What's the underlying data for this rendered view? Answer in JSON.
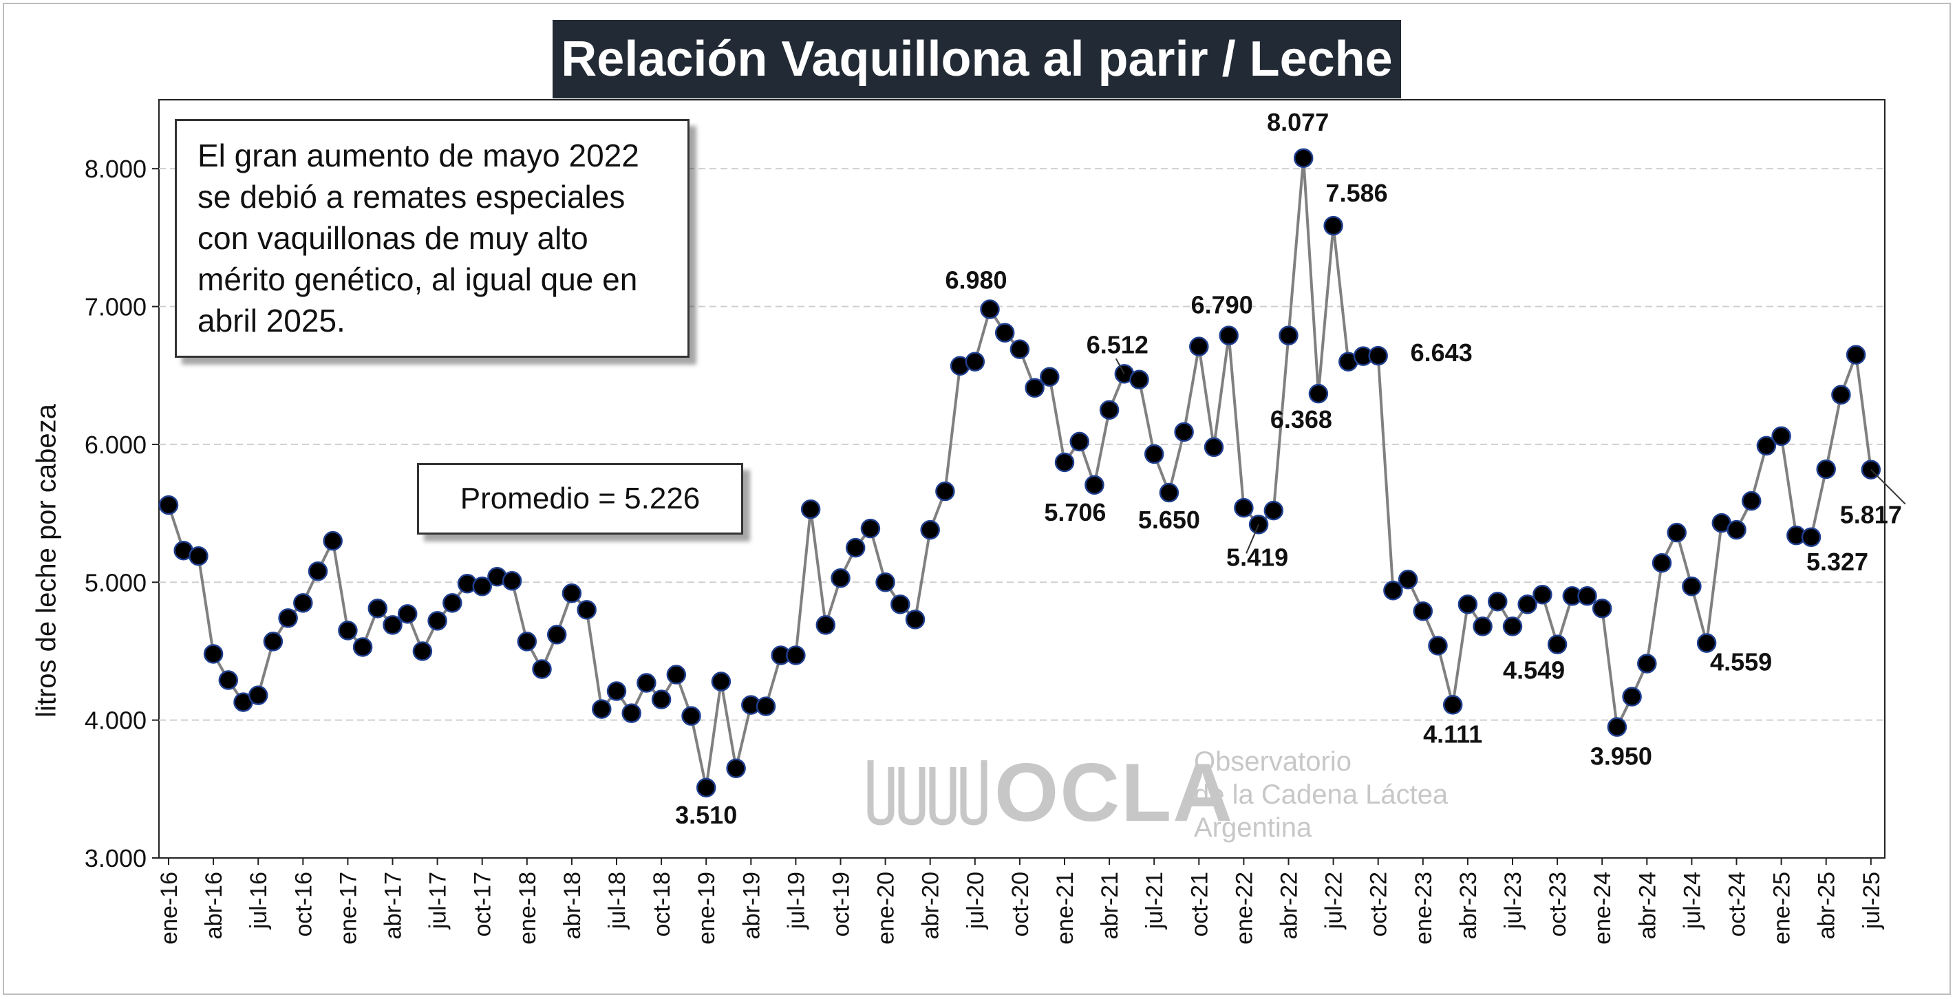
{
  "chart_data": {
    "type": "line",
    "title": "Relación Vaquillona al parir / Leche",
    "ylabel": "litros de leche por cabeza",
    "xlabel": "",
    "ylim": [
      3000,
      8500
    ],
    "yticks": [
      3000,
      4000,
      5000,
      6000,
      7000,
      8000
    ],
    "ytick_labels": [
      "3.000",
      "4.000",
      "5.000",
      "6.000",
      "7.000",
      "8.000"
    ],
    "xtick_labels": [
      "ene-16",
      "abr-16",
      "jul-16",
      "oct-16",
      "ene-17",
      "abr-17",
      "jul-17",
      "oct-17",
      "ene-18",
      "abr-18",
      "jul-18",
      "oct-18",
      "ene-19",
      "abr-19",
      "jul-19",
      "oct-19",
      "ene-20",
      "abr-20",
      "jul-20",
      "oct-20",
      "ene-21",
      "abr-21",
      "jul-21",
      "oct-21",
      "ene-22",
      "abr-22",
      "jul-22",
      "oct-22",
      "ene-23",
      "abr-23",
      "jul-23",
      "oct-23",
      "ene-24",
      "abr-24",
      "jul-24",
      "oct-24",
      "ene-25",
      "abr-25",
      "jul-25"
    ],
    "grid": "horizontal-dashed",
    "line_color": "#808080",
    "marker_color": "#000000",
    "marker_edge_color": "#1f3f8f",
    "values": [
      5560,
      5230,
      5190,
      4480,
      4290,
      4130,
      4180,
      4570,
      4740,
      4850,
      5080,
      5300,
      4650,
      4530,
      4810,
      4690,
      4770,
      4500,
      4720,
      4850,
      4990,
      4970,
      5040,
      5010,
      4570,
      4370,
      4620,
      4920,
      4800,
      4080,
      4210,
      4050,
      4270,
      4150,
      4330,
      4030,
      3510,
      4280,
      3650,
      4110,
      4100,
      4470,
      4470,
      5530,
      4690,
      5030,
      5250,
      5390,
      5000,
      4840,
      4730,
      5380,
      5660,
      6570,
      6600,
      6980,
      6810,
      6690,
      6410,
      6490,
      5870,
      6020,
      5706,
      6250,
      6512,
      6470,
      5930,
      5650,
      6090,
      6710,
      5980,
      6790,
      5540,
      5419,
      5520,
      6790,
      8077,
      6368,
      7586,
      6600,
      6640,
      6643,
      4940,
      5020,
      4790,
      4540,
      4111,
      4840,
      4680,
      4860,
      4680,
      4840,
      4910,
      4549,
      4900,
      4900,
      4810,
      3950,
      4170,
      4410,
      5140,
      5360,
      4970,
      4559,
      5430,
      5380,
      5590,
      5990,
      6060,
      5340,
      5327,
      5820,
      6360,
      6650,
      5817
    ],
    "annotations": [
      {
        "label": "3.510",
        "index": 36
      },
      {
        "label": "6.980",
        "index": 55
      },
      {
        "label": "5.706",
        "index": 62
      },
      {
        "label": "6.512",
        "index": 64
      },
      {
        "label": "5.650",
        "index": 67
      },
      {
        "label": "6.790",
        "index": 71
      },
      {
        "label": "5.419",
        "index": 73
      },
      {
        "label": "8.077",
        "index": 76
      },
      {
        "label": "6.368",
        "index": 77
      },
      {
        "label": "7.586",
        "index": 78
      },
      {
        "label": "6.643",
        "index": 81
      },
      {
        "label": "4.111",
        "index": 86
      },
      {
        "label": "4.549",
        "index": 93
      },
      {
        "label": "3.950",
        "index": 97
      },
      {
        "label": "4.559",
        "index": 103
      },
      {
        "label": "5.327",
        "index": 110
      },
      {
        "label": "5.817",
        "index": 114
      }
    ]
  },
  "note_text": "El gran  aumento de mayo 2022\nse debió a remates especiales\ncon vaquillonas de muy alto\nmérito genético, al igual que en\nabril 2025.",
  "average_text": "Promedio = 5.226",
  "watermark": {
    "brand": "OCLA",
    "text": "Observatorio\nde la Cadena Láctea\nArgentina"
  }
}
